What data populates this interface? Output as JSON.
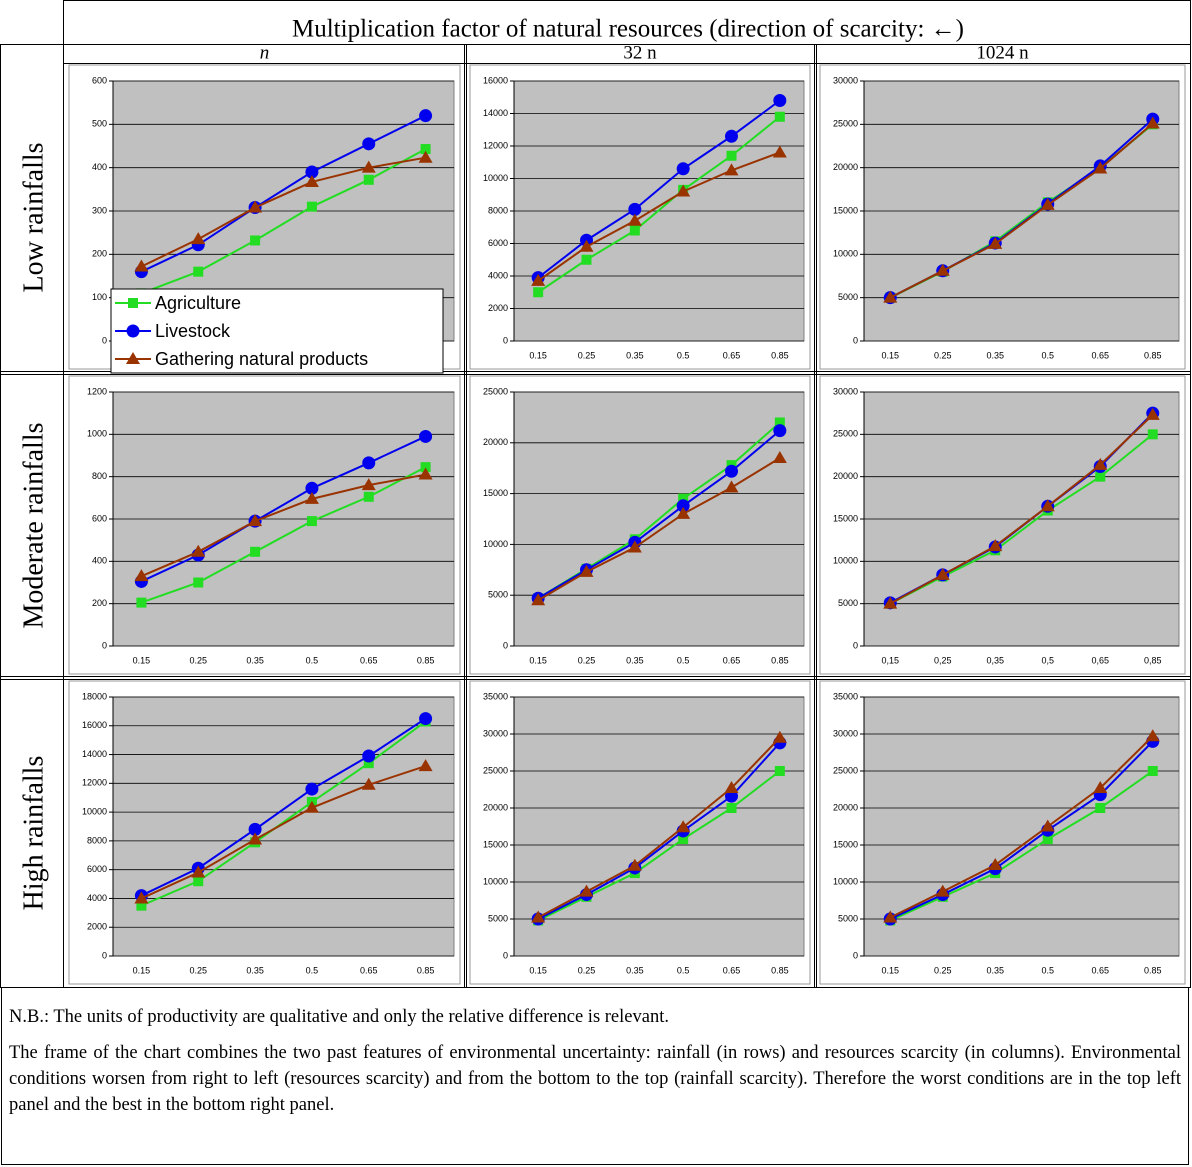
{
  "table": {
    "title": "Multiplication factor of natural resources (direction of scarcity: ←)",
    "columns": [
      "n",
      "32 n",
      "1024 n"
    ],
    "rows": [
      "Low rainfalls",
      "Moderate rainfalls",
      "High rainfalls"
    ]
  },
  "notes": [
    "N.B.: The units of productivity are qualitative and only the relative difference is relevant.",
    "The frame of the chart combines the two past features of environmental uncertainty: rainfall (in rows) and resources scarcity (in columns). Environmental conditions worsen from right to left (resources scarcity) and from the bottom to the top (rainfall scarcity). Therefore the worst conditions are in the top left panel and the best in the bottom right panel."
  ],
  "chart_data": [
    {
      "type": "line",
      "categories": [
        "0.15",
        "0.25",
        "0.35",
        "0.5",
        "0.65",
        "0.85"
      ],
      "ylim": [
        0,
        600
      ],
      "yticks": [
        0,
        100,
        200,
        300,
        400,
        500,
        600
      ],
      "grid": true,
      "legend": "lower left",
      "series": [
        {
          "name": "Agriculture",
          "color": "#22dd22",
          "marker": "square",
          "values": [
            110,
            160,
            232,
            310,
            372,
            443
          ]
        },
        {
          "name": "Livestock",
          "color": "#0000ee",
          "marker": "circle",
          "values": [
            160,
            222,
            308,
            390,
            455,
            520
          ]
        },
        {
          "name": "Gathering natural products",
          "color": "#993300",
          "marker": "triangle",
          "values": [
            172,
            235,
            308,
            367,
            400,
            423
          ]
        }
      ]
    },
    {
      "type": "line",
      "categories": [
        "0.15",
        "0.25",
        "0.35",
        "0.5",
        "0.65",
        "0.85"
      ],
      "ylim": [
        0,
        16000
      ],
      "yticks": [
        0,
        2000,
        4000,
        6000,
        8000,
        10000,
        12000,
        14000,
        16000
      ],
      "grid": true,
      "series": [
        {
          "color": "#22dd22",
          "marker": "square",
          "values": [
            3000,
            5000,
            6800,
            9300,
            11400,
            13800
          ]
        },
        {
          "color": "#0000ee",
          "marker": "circle",
          "values": [
            3900,
            6200,
            8100,
            10600,
            12600,
            14800
          ]
        },
        {
          "color": "#993300",
          "marker": "triangle",
          "values": [
            3700,
            5800,
            7400,
            9200,
            10500,
            11600
          ]
        }
      ]
    },
    {
      "type": "line",
      "categories": [
        "0.15",
        "0.25",
        "0.35",
        "0.5",
        "0.65",
        "0.85"
      ],
      "ylim": [
        0,
        30000
      ],
      "yticks": [
        0,
        5000,
        10000,
        15000,
        20000,
        25000,
        30000
      ],
      "grid": true,
      "series": [
        {
          "color": "#22dd22",
          "marker": "square",
          "values": [
            5000,
            8000,
            11500,
            16000,
            20000,
            25000
          ]
        },
        {
          "color": "#0000ee",
          "marker": "circle",
          "values": [
            5000,
            8100,
            11300,
            15800,
            20200,
            25600
          ]
        },
        {
          "color": "#993300",
          "marker": "triangle",
          "values": [
            5000,
            8100,
            11200,
            15700,
            19900,
            25100
          ]
        }
      ]
    },
    {
      "type": "line",
      "categories": [
        "0.15",
        "0.25",
        "0.35",
        "0.5",
        "0.65",
        "0.85"
      ],
      "ylim": [
        0,
        1200
      ],
      "yticks": [
        0,
        200,
        400,
        600,
        800,
        1000,
        1200
      ],
      "grid": true,
      "series": [
        {
          "color": "#22dd22",
          "marker": "square",
          "values": [
            205,
            300,
            445,
            590,
            705,
            845
          ]
        },
        {
          "color": "#0000ee",
          "marker": "circle",
          "values": [
            305,
            430,
            590,
            745,
            865,
            990
          ]
        },
        {
          "color": "#993300",
          "marker": "triangle",
          "values": [
            330,
            445,
            590,
            695,
            760,
            810
          ]
        }
      ]
    },
    {
      "type": "line",
      "categories": [
        "0.15",
        "0.25",
        "0.35",
        "0.5",
        "0.65",
        "0.85"
      ],
      "ylim": [
        0,
        25000
      ],
      "yticks": [
        0,
        5000,
        10000,
        15000,
        20000,
        25000
      ],
      "grid": true,
      "series": [
        {
          "color": "#22dd22",
          "marker": "square",
          "values": [
            4700,
            7600,
            10500,
            14500,
            17800,
            22000
          ]
        },
        {
          "color": "#0000ee",
          "marker": "circle",
          "values": [
            4700,
            7500,
            10200,
            13800,
            17200,
            21200
          ]
        },
        {
          "color": "#993300",
          "marker": "triangle",
          "values": [
            4500,
            7300,
            9700,
            13000,
            15600,
            18500
          ]
        }
      ]
    },
    {
      "type": "line",
      "categories": [
        "0,15",
        "0,25",
        "0,35",
        "0,5",
        "0,65",
        "0,85"
      ],
      "ylim": [
        0,
        30000
      ],
      "yticks": [
        0,
        5000,
        10000,
        15000,
        20000,
        25000,
        30000
      ],
      "grid": true,
      "series": [
        {
          "color": "#22dd22",
          "marker": "square",
          "values": [
            5000,
            8200,
            11300,
            16000,
            20000,
            25000
          ]
        },
        {
          "color": "#0000ee",
          "marker": "circle",
          "values": [
            5100,
            8400,
            11700,
            16500,
            21200,
            27500
          ]
        },
        {
          "color": "#993300",
          "marker": "triangle",
          "values": [
            5000,
            8400,
            11800,
            16500,
            21400,
            27300
          ]
        }
      ]
    },
    {
      "type": "line",
      "categories": [
        "0.15",
        "0.25",
        "0.35",
        "0.5",
        "0.65",
        "0.85"
      ],
      "ylim": [
        0,
        18000
      ],
      "yticks": [
        0,
        2000,
        4000,
        6000,
        8000,
        10000,
        12000,
        14000,
        16000,
        18000
      ],
      "grid": true,
      "series": [
        {
          "color": "#22dd22",
          "marker": "square",
          "values": [
            3500,
            5200,
            7900,
            10700,
            13400,
            16300
          ]
        },
        {
          "color": "#0000ee",
          "marker": "circle",
          "values": [
            4200,
            6100,
            8800,
            11600,
            13900,
            16500
          ]
        },
        {
          "color": "#993300",
          "marker": "triangle",
          "values": [
            4000,
            5800,
            8100,
            10300,
            11900,
            13200
          ]
        }
      ]
    },
    {
      "type": "line",
      "categories": [
        "0.15",
        "0.25",
        "0.35",
        "0.5",
        "0.65",
        "0.85"
      ],
      "ylim": [
        0,
        35000
      ],
      "yticks": [
        0,
        5000,
        10000,
        15000,
        20000,
        25000,
        30000,
        35000
      ],
      "grid": true,
      "series": [
        {
          "color": "#22dd22",
          "marker": "square",
          "values": [
            4800,
            8000,
            11200,
            15800,
            20000,
            25000
          ]
        },
        {
          "color": "#0000ee",
          "marker": "circle",
          "values": [
            5000,
            8300,
            11900,
            16900,
            21600,
            28800
          ]
        },
        {
          "color": "#993300",
          "marker": "triangle",
          "values": [
            5200,
            8700,
            12200,
            17400,
            22700,
            29500
          ]
        }
      ]
    },
    {
      "type": "line",
      "categories": [
        "0.15",
        "0.25",
        "0.35",
        "0.5",
        "0.65",
        "0.85"
      ],
      "ylim": [
        0,
        35000
      ],
      "yticks": [
        0,
        5000,
        10000,
        15000,
        20000,
        25000,
        30000,
        35000
      ],
      "grid": true,
      "series": [
        {
          "color": "#22dd22",
          "marker": "square",
          "values": [
            4800,
            8000,
            11200,
            15800,
            20000,
            25000
          ]
        },
        {
          "color": "#0000ee",
          "marker": "circle",
          "values": [
            5000,
            8300,
            11800,
            17000,
            21800,
            29000
          ]
        },
        {
          "color": "#993300",
          "marker": "triangle",
          "values": [
            5200,
            8700,
            12300,
            17500,
            22700,
            29700
          ]
        }
      ]
    }
  ]
}
